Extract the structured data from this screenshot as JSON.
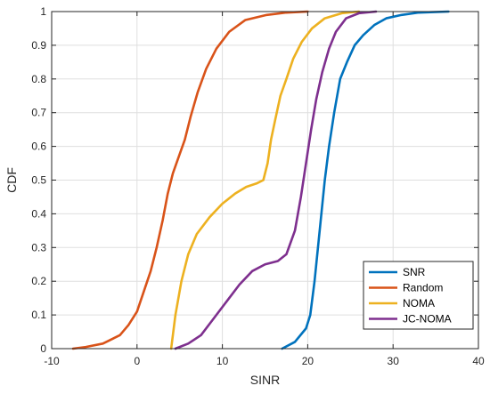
{
  "chart_data": {
    "type": "line",
    "title": "",
    "xlabel": "SINR",
    "ylabel": "CDF",
    "xlim": [
      -10,
      40
    ],
    "ylim": [
      0,
      1
    ],
    "xticks": [
      -10,
      0,
      10,
      20,
      30,
      40
    ],
    "yticks": [
      0,
      0.1,
      0.2,
      0.3,
      0.4,
      0.5,
      0.6,
      0.7,
      0.8,
      0.9,
      1
    ],
    "xtick_labels": [
      "-10",
      "0",
      "10",
      "20",
      "30",
      "40"
    ],
    "ytick_labels": [
      "0",
      "0.1",
      "0.2",
      "0.3",
      "0.4",
      "0.5",
      "0.6",
      "0.7",
      "0.8",
      "0.9",
      "1"
    ],
    "grid": true,
    "legend_position": "bottom-right",
    "series": [
      {
        "name": "SNR",
        "color": "#0072BD",
        "x": [
          17,
          18.5,
          19.8,
          20.3,
          20.8,
          21.2,
          21.6,
          22.0,
          22.5,
          23.1,
          23.8,
          24.6,
          25.5,
          26.5,
          27.8,
          29.2,
          31,
          33,
          36.5
        ],
        "y": [
          0,
          0.02,
          0.06,
          0.1,
          0.2,
          0.3,
          0.4,
          0.5,
          0.6,
          0.7,
          0.8,
          0.85,
          0.9,
          0.93,
          0.96,
          0.98,
          0.99,
          0.997,
          1
        ]
      },
      {
        "name": "Random",
        "color": "#D95319",
        "x": [
          -7.5,
          -6,
          -4,
          -2,
          -1,
          0,
          0.8,
          1.6,
          2.3,
          3.0,
          3.6,
          4.2,
          4.9,
          5.6,
          6.3,
          7.1,
          8.1,
          9.3,
          10.8,
          12.7,
          15.2,
          17.5,
          20
        ],
        "y": [
          0,
          0.005,
          0.015,
          0.04,
          0.07,
          0.11,
          0.17,
          0.23,
          0.3,
          0.38,
          0.46,
          0.52,
          0.57,
          0.62,
          0.69,
          0.76,
          0.83,
          0.89,
          0.94,
          0.975,
          0.99,
          0.997,
          1
        ]
      },
      {
        "name": "NOMA",
        "color": "#EDB120",
        "x": [
          4,
          4.5,
          5.2,
          6.0,
          7.0,
          8.5,
          10.0,
          11.5,
          12.8,
          14.0,
          14.8,
          15.3,
          15.7,
          16.2,
          16.8,
          17.5,
          18.3,
          19.3,
          20.5,
          22.0,
          24.0,
          26.0
        ],
        "y": [
          0,
          0.1,
          0.2,
          0.28,
          0.34,
          0.39,
          0.43,
          0.46,
          0.48,
          0.49,
          0.5,
          0.55,
          0.62,
          0.68,
          0.75,
          0.8,
          0.86,
          0.91,
          0.95,
          0.98,
          0.995,
          1
        ]
      },
      {
        "name": "JC-NOMA",
        "color": "#7E2F8E",
        "x": [
          4.5,
          6,
          7.5,
          9,
          10.5,
          12,
          13.5,
          15.0,
          16.5,
          17.5,
          18.5,
          19.2,
          19.8,
          20.4,
          21.0,
          21.7,
          22.5,
          23.3,
          24.5,
          26.0,
          28.0
        ],
        "y": [
          0,
          0.015,
          0.04,
          0.09,
          0.14,
          0.19,
          0.23,
          0.25,
          0.26,
          0.28,
          0.35,
          0.45,
          0.55,
          0.65,
          0.74,
          0.82,
          0.89,
          0.94,
          0.98,
          0.995,
          1
        ]
      }
    ]
  }
}
